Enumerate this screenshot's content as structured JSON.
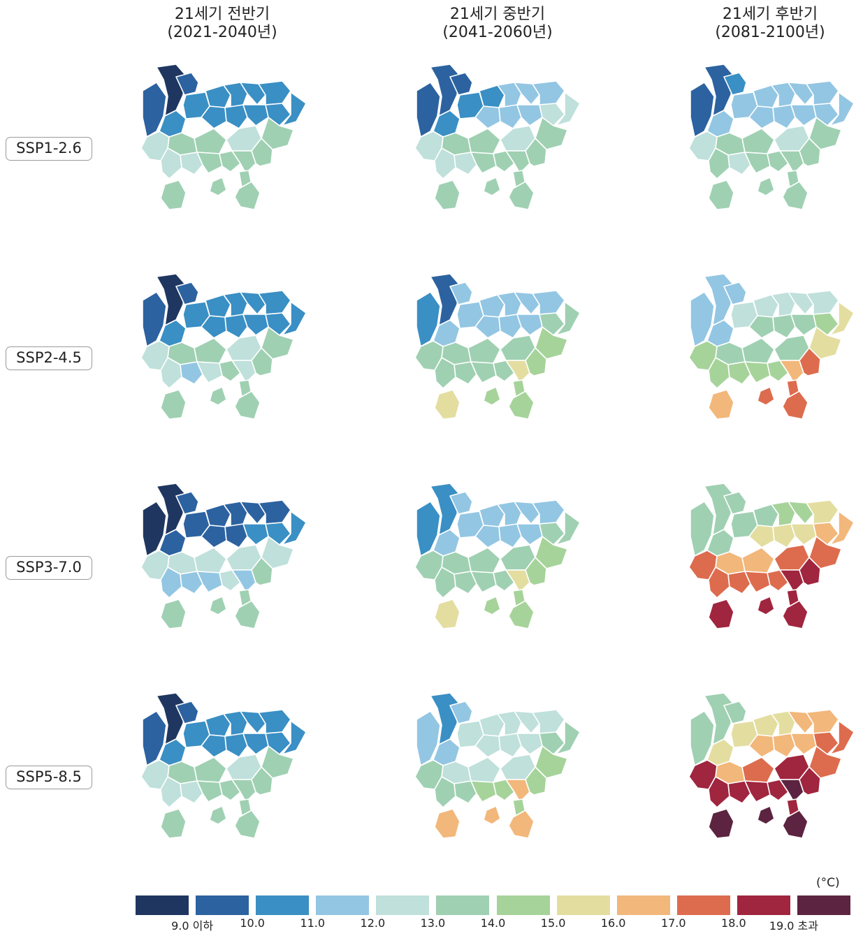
{
  "columns": [
    {
      "title": "21세기 전반기",
      "period": "(2021-2040년)"
    },
    {
      "title": "21세기 중반기",
      "period": "(2041-2060년)"
    },
    {
      "title": "21세기 후반기",
      "period": "(2081-2100년)"
    }
  ],
  "rows": [
    "SSP1-2.6",
    "SSP2-4.5",
    "SSP3-7.0",
    "SSP5-8.5"
  ],
  "legend": {
    "unit": "(°C)",
    "colors": [
      "#1f3760",
      "#2c62a0",
      "#3a8fc4",
      "#93c6e3",
      "#bfe0db",
      "#9fd0b2",
      "#a6d39a",
      "#e3dea0",
      "#f2b77a",
      "#dd6c4e",
      "#a0253f",
      "#5c2440"
    ],
    "ticks": [
      "9.0 이하",
      "10.0",
      "11.0",
      "12.0",
      "13.0",
      "14.0",
      "15.0",
      "16.0",
      "17.0",
      "18.0",
      "19.0 초과"
    ]
  },
  "maps": [
    [
      [
        0,
        1,
        1,
        2,
        2,
        2,
        2,
        2,
        2,
        2,
        2,
        2,
        2,
        2,
        5,
        5,
        5,
        4,
        4,
        4,
        4,
        5,
        5,
        5,
        5,
        5,
        5,
        5,
        5
      ],
      [
        1,
        1,
        1,
        2,
        2,
        2,
        3,
        3,
        3,
        3,
        3,
        3,
        4,
        4,
        5,
        5,
        5,
        4,
        4,
        4,
        4,
        5,
        5,
        5,
        5,
        5,
        5,
        5,
        5
      ],
      [
        1,
        1,
        2,
        3,
        3,
        3,
        3,
        3,
        3,
        3,
        3,
        3,
        3,
        3,
        5,
        5,
        5,
        4,
        4,
        5,
        4,
        5,
        5,
        5,
        5,
        5,
        5,
        5,
        5
      ]
    ],
    [
      [
        0,
        1,
        1,
        2,
        2,
        2,
        2,
        2,
        2,
        2,
        2,
        2,
        2,
        2,
        5,
        5,
        5,
        4,
        4,
        4,
        3,
        4,
        5,
        4,
        5,
        5,
        5,
        5,
        5
      ],
      [
        1,
        2,
        3,
        3,
        3,
        3,
        3,
        3,
        3,
        3,
        3,
        3,
        5,
        5,
        6,
        5,
        5,
        5,
        5,
        5,
        5,
        5,
        5,
        7,
        6,
        6,
        7,
        6,
        6
      ],
      [
        3,
        3,
        3,
        3,
        4,
        4,
        4,
        4,
        4,
        5,
        5,
        5,
        6,
        7,
        7,
        5,
        5,
        5,
        6,
        6,
        6,
        6,
        6,
        8,
        9,
        9,
        8,
        9,
        9
      ]
    ],
    [
      [
        0,
        0,
        1,
        1,
        1,
        1,
        1,
        1,
        1,
        1,
        1,
        2,
        2,
        2,
        4,
        4,
        4,
        4,
        4,
        3,
        3,
        3,
        4,
        3,
        5,
        5,
        5,
        5,
        5
      ],
      [
        2,
        2,
        3,
        3,
        3,
        3,
        3,
        3,
        3,
        3,
        3,
        3,
        5,
        5,
        6,
        5,
        5,
        5,
        5,
        5,
        5,
        5,
        5,
        7,
        6,
        6,
        7,
        6,
        6
      ],
      [
        5,
        5,
        5,
        5,
        5,
        5,
        6,
        6,
        7,
        7,
        7,
        7,
        8,
        8,
        9,
        8,
        8,
        9,
        9,
        9,
        9,
        9,
        9,
        10,
        10,
        10,
        10,
        10,
        10
      ]
    ],
    [
      [
        0,
        1,
        1,
        2,
        2,
        2,
        2,
        2,
        2,
        2,
        2,
        2,
        2,
        2,
        5,
        5,
        5,
        4,
        4,
        4,
        4,
        5,
        5,
        5,
        5,
        5,
        5,
        5,
        5
      ],
      [
        2,
        3,
        3,
        3,
        4,
        4,
        4,
        4,
        4,
        4,
        4,
        4,
        5,
        5,
        6,
        4,
        4,
        4,
        5,
        5,
        5,
        6,
        6,
        8,
        6,
        6,
        8,
        8,
        8
      ],
      [
        5,
        5,
        5,
        7,
        7,
        7,
        7,
        8,
        8,
        8,
        8,
        8,
        9,
        9,
        9,
        8,
        9,
        10,
        10,
        10,
        10,
        10,
        10,
        11,
        10,
        10,
        11,
        11,
        11
      ]
    ]
  ]
}
